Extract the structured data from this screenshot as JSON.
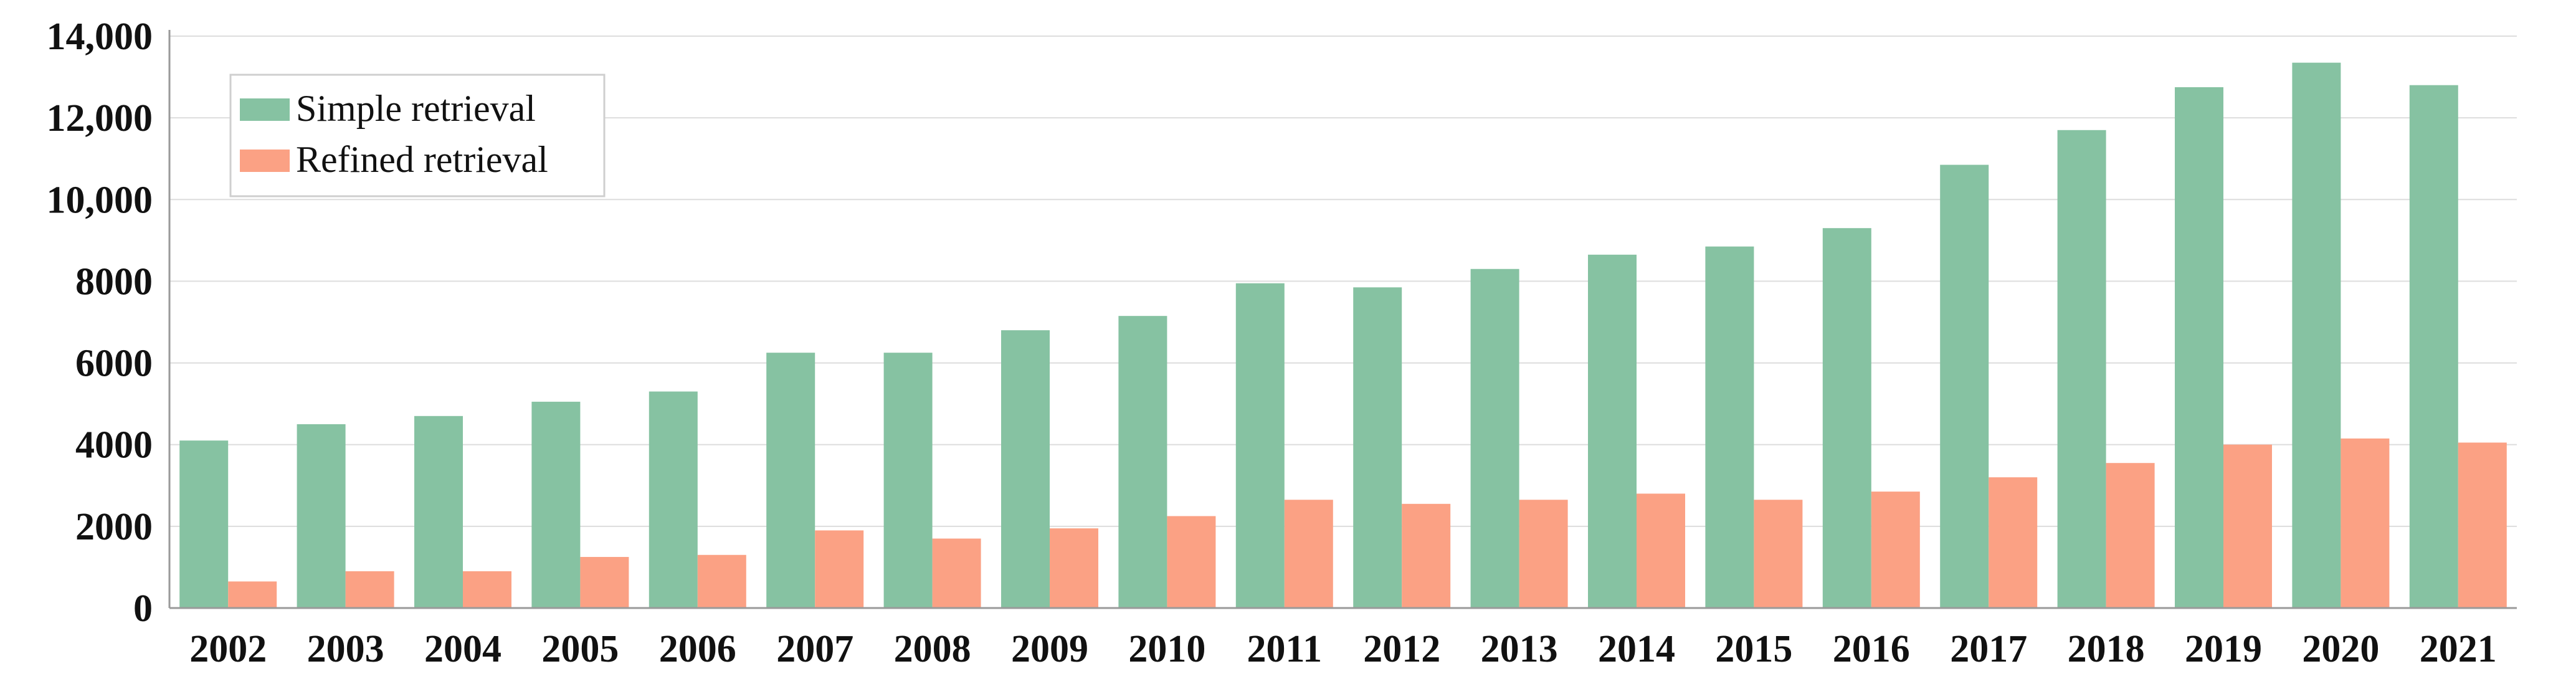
{
  "chart_data": {
    "type": "bar",
    "title": "",
    "xlabel": "",
    "ylabel": "",
    "ylim": [
      0,
      14000
    ],
    "yticks": [
      0,
      2000,
      4000,
      6000,
      8000,
      10000,
      12000,
      14000
    ],
    "ytick_labels": [
      "0",
      "2000",
      "4000",
      "6000",
      "8000",
      "10,000",
      "12,000",
      "14,000"
    ],
    "grid": "horizontal",
    "legend_position": "top-left",
    "categories": [
      "2002",
      "2003",
      "2004",
      "2005",
      "2006",
      "2007",
      "2008",
      "2009",
      "2010",
      "2011",
      "2012",
      "2013",
      "2014",
      "2015",
      "2016",
      "2017",
      "2018",
      "2019",
      "2020",
      "2021"
    ],
    "series": [
      {
        "name": "Simple retrieval",
        "color": "#86c2a2",
        "values": [
          4100,
          4500,
          4700,
          5050,
          5300,
          6250,
          6250,
          6800,
          7150,
          7950,
          7850,
          8300,
          8650,
          8850,
          9300,
          10850,
          11700,
          12750,
          13350,
          12800
        ]
      },
      {
        "name": "Refined retrieval",
        "color": "#fba184",
        "values": [
          650,
          900,
          900,
          1250,
          1300,
          1900,
          1700,
          1950,
          2250,
          2650,
          2550,
          2650,
          2800,
          2650,
          2850,
          3200,
          3550,
          4000,
          4150,
          4050
        ]
      }
    ]
  }
}
